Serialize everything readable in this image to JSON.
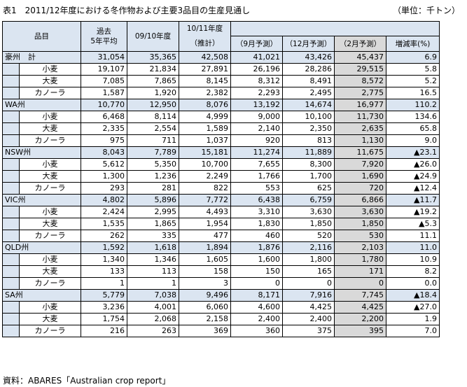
{
  "title": "表1　2011/12年度における冬作物および主要3品目の生産見通し",
  "unit": "（単位：千トン）",
  "headers": {
    "item": "品目",
    "avg5_line1": "過去",
    "avg5_line2": "5年平均",
    "y0910": "09/10年度",
    "y1011_line1": "10/11年度",
    "y1011_line2": "（推計）",
    "sep": "（9月予測）",
    "dec": "（12月予測）",
    "feb": "（2月予測）",
    "rate": "増減率(%)"
  },
  "regions": [
    {
      "name": "豪州　計",
      "values": [
        "31,054",
        "35,365",
        "42,508",
        "41,021",
        "43,426",
        "45,437",
        "6.9"
      ],
      "crops": [
        {
          "name": "小麦",
          "values": [
            "19,107",
            "21,834",
            "27,891",
            "26,196",
            "28,286",
            "29,515",
            "5.8"
          ]
        },
        {
          "name": "大麦",
          "values": [
            "7,085",
            "7,865",
            "8,145",
            "8,312",
            "8,491",
            "8,572",
            "5.2"
          ]
        },
        {
          "name": "カノーラ",
          "values": [
            "1,587",
            "1,920",
            "2,382",
            "2,293",
            "2,495",
            "2,775",
            "16.5"
          ]
        }
      ]
    },
    {
      "name": "WA州",
      "values": [
        "10,770",
        "12,950",
        "8,076",
        "13,192",
        "14,674",
        "16,977",
        "110.2"
      ],
      "crops": [
        {
          "name": "小麦",
          "values": [
            "6,468",
            "8,114",
            "4,999",
            "9,000",
            "10,100",
            "11,730",
            "134.6"
          ]
        },
        {
          "name": "大麦",
          "values": [
            "2,335",
            "2,554",
            "1,589",
            "2,140",
            "2,350",
            "2,635",
            "65.8"
          ]
        },
        {
          "name": "カノーラ",
          "values": [
            "975",
            "711",
            "1,037",
            "920",
            "813",
            "1,130",
            "9.0"
          ]
        }
      ]
    },
    {
      "name": "NSW州",
      "values": [
        "8,043",
        "7,789",
        "15,181",
        "11,274",
        "11,889",
        "11,675",
        "▲23.1"
      ],
      "crops": [
        {
          "name": "小麦",
          "values": [
            "5,612",
            "5,350",
            "10,700",
            "7,655",
            "8,300",
            "7,920",
            "▲26.0"
          ]
        },
        {
          "name": "大麦",
          "values": [
            "1,300",
            "1,236",
            "2,249",
            "1,766",
            "1,700",
            "1,690",
            "▲24.9"
          ]
        },
        {
          "name": "カノーラ",
          "values": [
            "293",
            "281",
            "822",
            "553",
            "625",
            "720",
            "▲12.4"
          ]
        }
      ]
    },
    {
      "name": "VIC州",
      "values": [
        "4,802",
        "5,896",
        "7,772",
        "6,438",
        "6,759",
        "6,866",
        "▲11.7"
      ],
      "crops": [
        {
          "name": "小麦",
          "values": [
            "2,424",
            "2,995",
            "4,493",
            "3,310",
            "3,630",
            "3,630",
            "▲19.2"
          ]
        },
        {
          "name": "大麦",
          "values": [
            "1,535",
            "1,865",
            "1,954",
            "1,830",
            "1,850",
            "1,850",
            "▲5.3"
          ]
        },
        {
          "name": "カノーラ",
          "values": [
            "262",
            "335",
            "477",
            "460",
            "520",
            "530",
            "11.1"
          ]
        }
      ]
    },
    {
      "name": "QLD州",
      "values": [
        "1,592",
        "1,618",
        "1,894",
        "1,876",
        "2,116",
        "2,103",
        "11.0"
      ],
      "crops": [
        {
          "name": "小麦",
          "values": [
            "1,340",
            "1,346",
            "1,605",
            "1,600",
            "1,800",
            "1,780",
            "10.9"
          ]
        },
        {
          "name": "大麦",
          "values": [
            "133",
            "113",
            "158",
            "150",
            "165",
            "171",
            "8.2"
          ]
        },
        {
          "name": "カノーラ",
          "values": [
            "1",
            "1",
            "3",
            "0",
            "0",
            "0",
            "0.0"
          ]
        }
      ]
    },
    {
      "name": "SA州",
      "values": [
        "5,779",
        "7,038",
        "9,496",
        "8,171",
        "7,916",
        "7,745",
        "▲18.4"
      ],
      "crops": [
        {
          "name": "小麦",
          "values": [
            "3,236",
            "4,001",
            "6,060",
            "4,600",
            "4,425",
            "4,425",
            "▲27.0"
          ]
        },
        {
          "name": "大麦",
          "values": [
            "1,754",
            "2,068",
            "2,158",
            "2,400",
            "2,400",
            "2,200",
            "1.9"
          ]
        },
        {
          "name": "カノーラ",
          "values": [
            "216",
            "263",
            "369",
            "360",
            "375",
            "395",
            "7.0"
          ]
        }
      ]
    }
  ],
  "source": "資料：ABARES「Australian crop report」"
}
